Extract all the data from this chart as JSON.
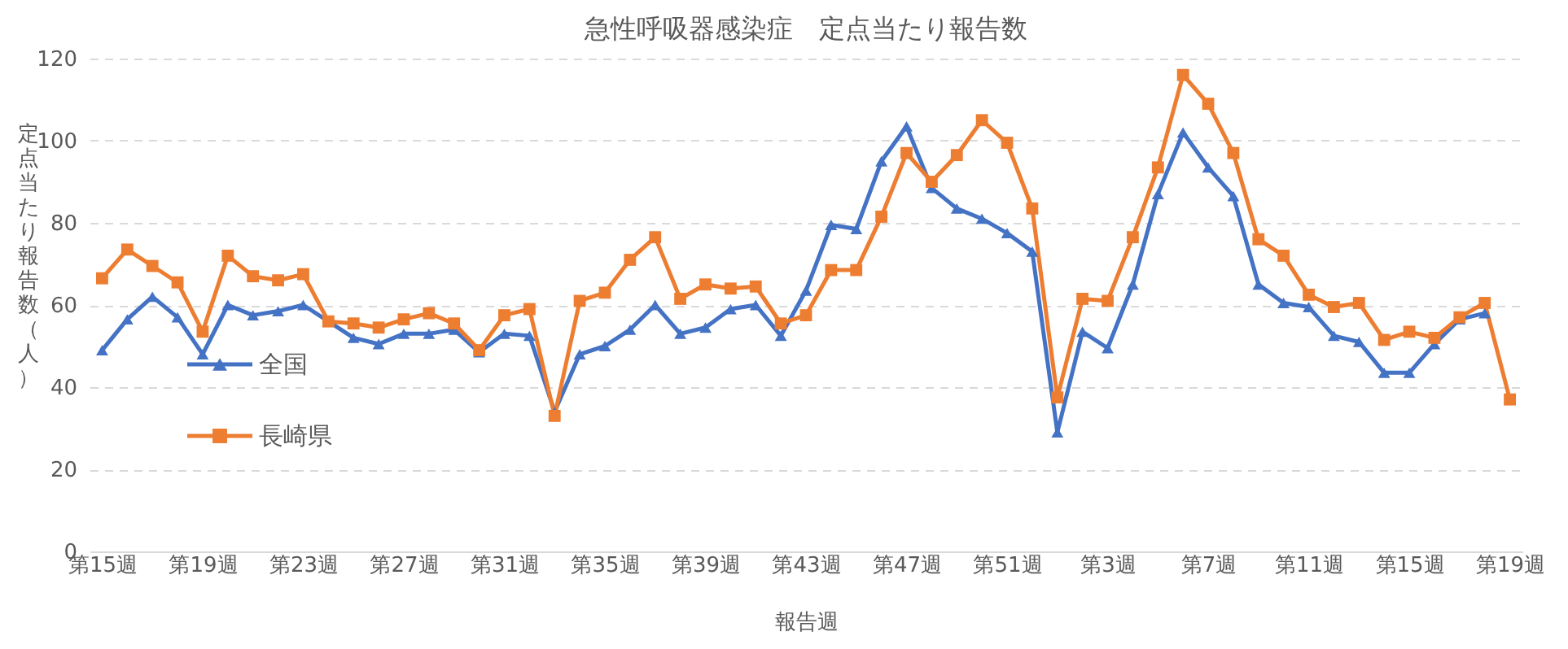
{
  "chart_data": {
    "type": "line",
    "title": "急性呼吸器感染症　定点当たり報告数",
    "xlabel": "報告週",
    "ylabel": "定点当たり報告数（人）",
    "categories": [
      "第15週",
      null,
      null,
      null,
      "第19週",
      null,
      null,
      null,
      "第23週",
      null,
      null,
      null,
      "第27週",
      null,
      null,
      null,
      "第31週",
      null,
      null,
      null,
      "第35週",
      null,
      null,
      null,
      "第39週",
      null,
      null,
      null,
      "第43週",
      null,
      null,
      null,
      "第47週",
      null,
      null,
      null,
      "第51週",
      null,
      null,
      null,
      "第3週",
      null,
      null,
      null,
      "第7週",
      null,
      null,
      null,
      "第11週",
      null,
      null,
      null,
      "第15週",
      null,
      null,
      null,
      "第19週"
    ],
    "series": [
      {
        "name": "全国",
        "color": "#4472c4",
        "marker": "triangle",
        "values": [
          49,
          56.5,
          62,
          57,
          48,
          60,
          57.5,
          58.5,
          60,
          56,
          52,
          50.5,
          53,
          53,
          54,
          48.5,
          53,
          52.5,
          34,
          48,
          50,
          54,
          60,
          53,
          54.5,
          59,
          60,
          52.5,
          63.5,
          79.5,
          78.5,
          95,
          103.5,
          88.5,
          83.5,
          81,
          77.5,
          73,
          29,
          53.5,
          49.5,
          65,
          87,
          102,
          93.5,
          86.5,
          65,
          60.5,
          59.5,
          52.5,
          51,
          43.5,
          43.5,
          50.5,
          56.5,
          58,
          null
        ]
      },
      {
        "name": "長崎県",
        "color": "#ed7d31",
        "marker": "square",
        "values": [
          66.5,
          73.5,
          69.5,
          65.5,
          53.5,
          72,
          67,
          66,
          67.5,
          56,
          55.5,
          54.5,
          56.5,
          58,
          55.5,
          49,
          57.5,
          59,
          33,
          61,
          63,
          71,
          76.5,
          61.5,
          65,
          64,
          64.5,
          55.5,
          57.5,
          68.5,
          68.5,
          81.5,
          97,
          90,
          96.5,
          105,
          99.5,
          83.5,
          37.5,
          61.5,
          61,
          76.5,
          93.5,
          116,
          109,
          97,
          76,
          72,
          62.5,
          59.5,
          60.5,
          51.5,
          53.5,
          52,
          57,
          60.5,
          37
        ]
      }
    ],
    "ylim": [
      0,
      120
    ],
    "yticks": [
      0,
      20,
      40,
      60,
      80,
      100,
      120
    ],
    "grid": "y",
    "legend": "bottom left",
    "line_style": "solid"
  }
}
